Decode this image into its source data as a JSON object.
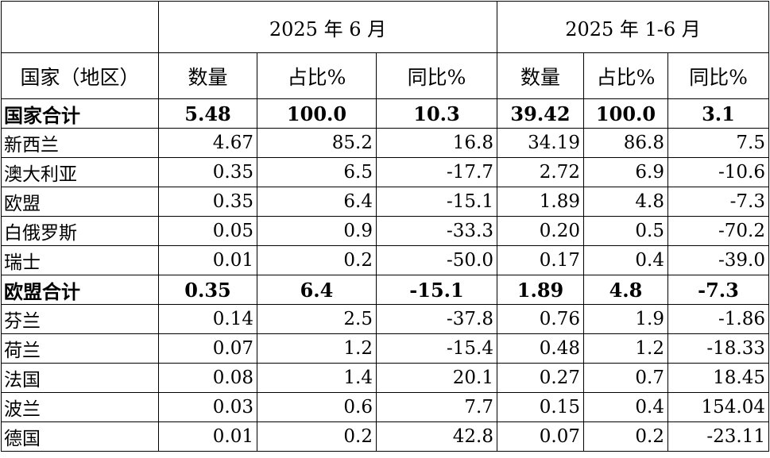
{
  "header": {
    "group1": "2025 年 6 月",
    "group2": "2025 年 1-6 月",
    "country": "国家（地区）",
    "qty": "数量",
    "share": "占比%",
    "yoy": "同比%"
  },
  "rows": [
    {
      "kind": "sum",
      "name": "国家合计",
      "v": [
        "5.48",
        "100.0",
        "10.3",
        "39.42",
        "100.0",
        "3.1"
      ]
    },
    {
      "kind": "row",
      "name": "新西兰",
      "v": [
        "4.67",
        "85.2",
        "16.8",
        "34.19",
        "86.8",
        "7.5"
      ]
    },
    {
      "kind": "row",
      "name": "澳大利亚",
      "v": [
        "0.35",
        "6.5",
        "-17.7",
        "2.72",
        "6.9",
        "-10.6"
      ]
    },
    {
      "kind": "row",
      "name": "欧盟",
      "v": [
        "0.35",
        "6.4",
        "-15.1",
        "1.89",
        "4.8",
        "-7.3"
      ]
    },
    {
      "kind": "row",
      "name": "白俄罗斯",
      "v": [
        "0.05",
        "0.9",
        "-33.3",
        "0.20",
        "0.5",
        "-70.2"
      ]
    },
    {
      "kind": "row",
      "name": "瑞士",
      "v": [
        "0.01",
        "0.2",
        "-50.0",
        "0.17",
        "0.4",
        "-39.0"
      ]
    },
    {
      "kind": "sum",
      "name": "欧盟合计",
      "v": [
        "0.35",
        "6.4",
        "-15.1",
        "1.89",
        "4.8",
        "-7.3"
      ]
    },
    {
      "kind": "row",
      "name": "芬兰",
      "v": [
        "0.14",
        "2.5",
        "-37.8",
        "0.76",
        "1.9",
        "-1.86"
      ]
    },
    {
      "kind": "row",
      "name": "荷兰",
      "v": [
        "0.07",
        "1.2",
        "-15.4",
        "0.48",
        "1.2",
        "-18.33"
      ]
    },
    {
      "kind": "row",
      "name": "法国",
      "v": [
        "0.08",
        "1.4",
        "20.1",
        "0.27",
        "0.7",
        "18.45"
      ]
    },
    {
      "kind": "row",
      "name": "波兰",
      "v": [
        "0.03",
        "0.6",
        "7.7",
        "0.15",
        "0.4",
        "154.04"
      ]
    },
    {
      "kind": "row",
      "name": "德国",
      "v": [
        "0.01",
        "0.2",
        "42.8",
        "0.07",
        "0.2",
        "-23.11"
      ]
    }
  ]
}
